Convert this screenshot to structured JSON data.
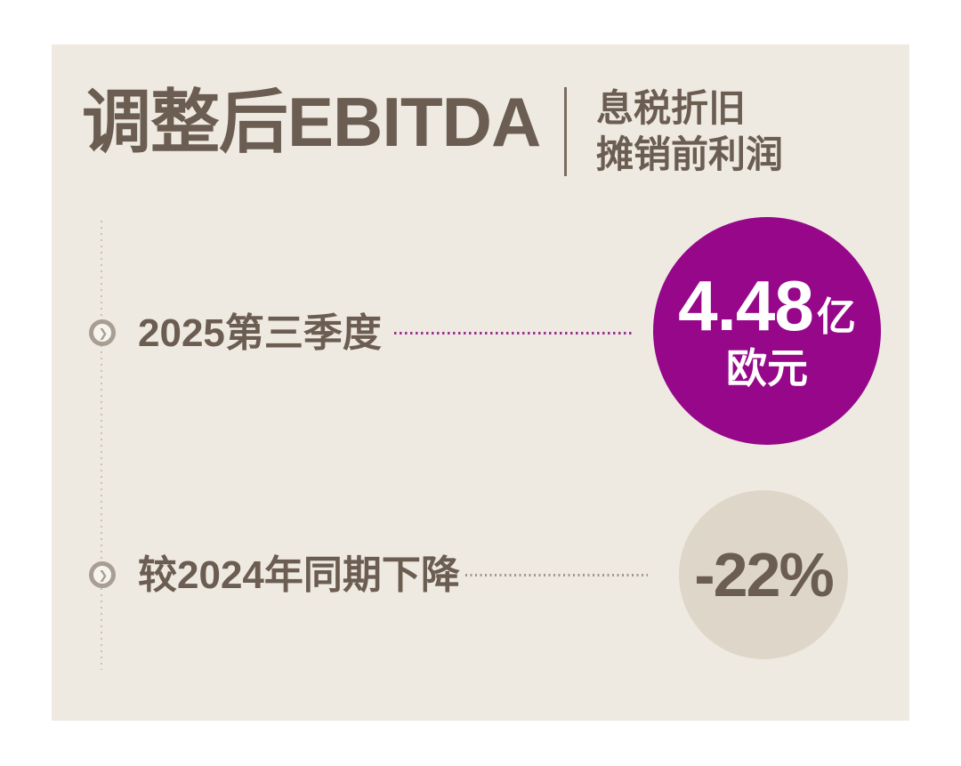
{
  "colors": {
    "page-bg": "#ffffff",
    "card-bg": "#efeae1",
    "ink": "#6b5d52",
    "divider": "#7b6c60",
    "accent-purple": "#96078a",
    "accent-purple-dots": "#9c2f93",
    "beige-circle": "#ded7c9",
    "gray-dots": "#c8c1b4",
    "connector-gray": "#a1978a",
    "bullet-ring": "#a89e93",
    "value-text": "#ffffff"
  },
  "header": {
    "title": "调整后EBITDA",
    "subtitle_line1": "息税折旧",
    "subtitle_line2": "摊销前利润"
  },
  "icons": {
    "bullet_chevron": "❯"
  },
  "rows": [
    {
      "label": "2025第三季度",
      "value": "4.48",
      "unit": "亿",
      "currency": "欧元"
    },
    {
      "label": "较2024年同期下降",
      "value": "-22%"
    }
  ]
}
